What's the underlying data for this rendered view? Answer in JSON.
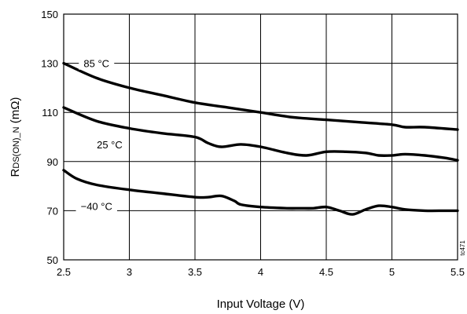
{
  "chart_data": {
    "type": "line",
    "xlabel": "Input Voltage (V)",
    "ylabel": "RDS(ON)_N (mΩ)",
    "ylabel_parts": {
      "main": "R",
      "sub": "DS(ON)_N",
      "unit": " (mΩ)"
    },
    "xlim": [
      2.5,
      5.5
    ],
    "ylim": [
      50,
      150
    ],
    "x_ticks": [
      "2.5",
      "3",
      "3.5",
      "4",
      "4.5",
      "5",
      "5.5"
    ],
    "y_ticks": [
      "50",
      "70",
      "90",
      "110",
      "130",
      "150"
    ],
    "grid": true,
    "figure_id": "tc471",
    "series": [
      {
        "name": "85 °C",
        "x": [
          2.5,
          2.75,
          3.0,
          3.25,
          3.5,
          3.75,
          4.0,
          4.25,
          4.5,
          4.75,
          5.0,
          5.1,
          5.25,
          5.5
        ],
        "y": [
          130,
          124,
          120,
          117,
          114,
          112,
          110,
          108,
          107,
          106,
          105,
          104,
          104,
          103
        ],
        "label_at": [
          2.75,
          129
        ]
      },
      {
        "name": "25 °C",
        "x": [
          2.5,
          2.75,
          3.0,
          3.25,
          3.5,
          3.6,
          3.7,
          3.85,
          4.0,
          4.2,
          4.35,
          4.5,
          4.65,
          4.8,
          4.9,
          5.0,
          5.1,
          5.25,
          5.4,
          5.5
        ],
        "y": [
          112,
          106.5,
          103.5,
          101.5,
          100,
          97.5,
          96,
          97,
          96,
          93.5,
          92.5,
          94,
          94,
          93.5,
          92.5,
          92.5,
          93,
          92.5,
          91.5,
          90.5
        ],
        "label_at": [
          2.85,
          96
        ]
      },
      {
        "name": "−40 °C",
        "x": [
          2.5,
          2.6,
          2.75,
          3.0,
          3.25,
          3.5,
          3.6,
          3.7,
          3.8,
          3.85,
          4.0,
          4.2,
          4.3,
          4.4,
          4.5,
          4.6,
          4.7,
          4.8,
          4.9,
          5.0,
          5.1,
          5.25,
          5.4,
          5.5
        ],
        "y": [
          86.5,
          83,
          80.5,
          78.5,
          77,
          75.5,
          75.5,
          76,
          74,
          72.5,
          71.5,
          71,
          71,
          71,
          71.5,
          70,
          68.5,
          70.5,
          72,
          71.5,
          70.5,
          70,
          70,
          70
        ],
        "label_at": [
          2.75,
          71
        ]
      }
    ]
  }
}
